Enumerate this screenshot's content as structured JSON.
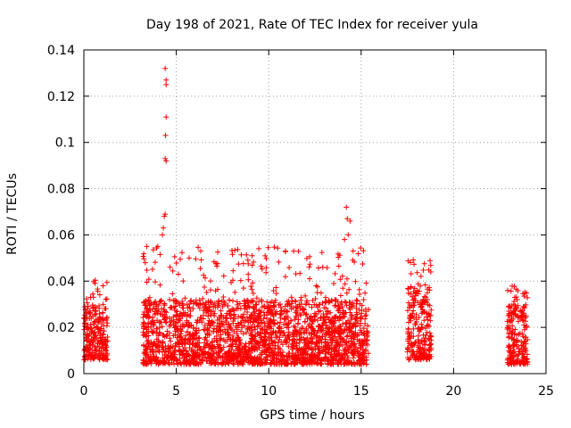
{
  "chart_data": {
    "type": "scatter",
    "title": "Day 198 of 2021, Rate Of TEC Index for receiver yula",
    "xlabel": "GPS time / hours",
    "ylabel": "ROTI / TECUs",
    "xlim": [
      0,
      25
    ],
    "ylim": [
      0,
      0.14
    ],
    "x_ticks": [
      "0",
      "5",
      "10",
      "15",
      "20",
      "25"
    ],
    "y_ticks": [
      "0",
      "0.02",
      "0.04",
      "0.06",
      "0.08",
      "0.1",
      "0.12",
      "0.14"
    ],
    "grid": true,
    "marker": "+",
    "color": "#ff0000",
    "segments": [
      {
        "x_start": 0.0,
        "x_end": 1.3,
        "base_low": 0.006,
        "base_high": 0.03,
        "max": 0.045
      },
      {
        "x_start": 3.2,
        "x_end": 15.4,
        "base_low": 0.004,
        "base_high": 0.032,
        "max": 0.055
      },
      {
        "x_start": 17.5,
        "x_end": 18.8,
        "base_low": 0.006,
        "base_high": 0.038,
        "max": 0.05
      },
      {
        "x_start": 22.9,
        "x_end": 24.0,
        "base_low": 0.004,
        "base_high": 0.03,
        "max": 0.038
      }
    ],
    "peaks": [
      {
        "x": 4.4,
        "y": 0.132
      },
      {
        "x": 4.45,
        "y": 0.127
      },
      {
        "x": 4.45,
        "y": 0.125
      },
      {
        "x": 4.45,
        "y": 0.111
      },
      {
        "x": 4.42,
        "y": 0.103
      },
      {
        "x": 4.4,
        "y": 0.093
      },
      {
        "x": 4.45,
        "y": 0.092
      },
      {
        "x": 4.4,
        "y": 0.069
      },
      {
        "x": 4.35,
        "y": 0.068
      },
      {
        "x": 4.3,
        "y": 0.063
      },
      {
        "x": 4.25,
        "y": 0.06
      },
      {
        "x": 14.2,
        "y": 0.072
      },
      {
        "x": 14.25,
        "y": 0.067
      },
      {
        "x": 14.4,
        "y": 0.066
      },
      {
        "x": 14.3,
        "y": 0.06
      },
      {
        "x": 14.1,
        "y": 0.058
      },
      {
        "x": 9.1,
        "y": 0.051
      },
      {
        "x": 10.9,
        "y": 0.053
      },
      {
        "x": 4.0,
        "y": 0.055
      },
      {
        "x": 3.4,
        "y": 0.055
      }
    ]
  }
}
